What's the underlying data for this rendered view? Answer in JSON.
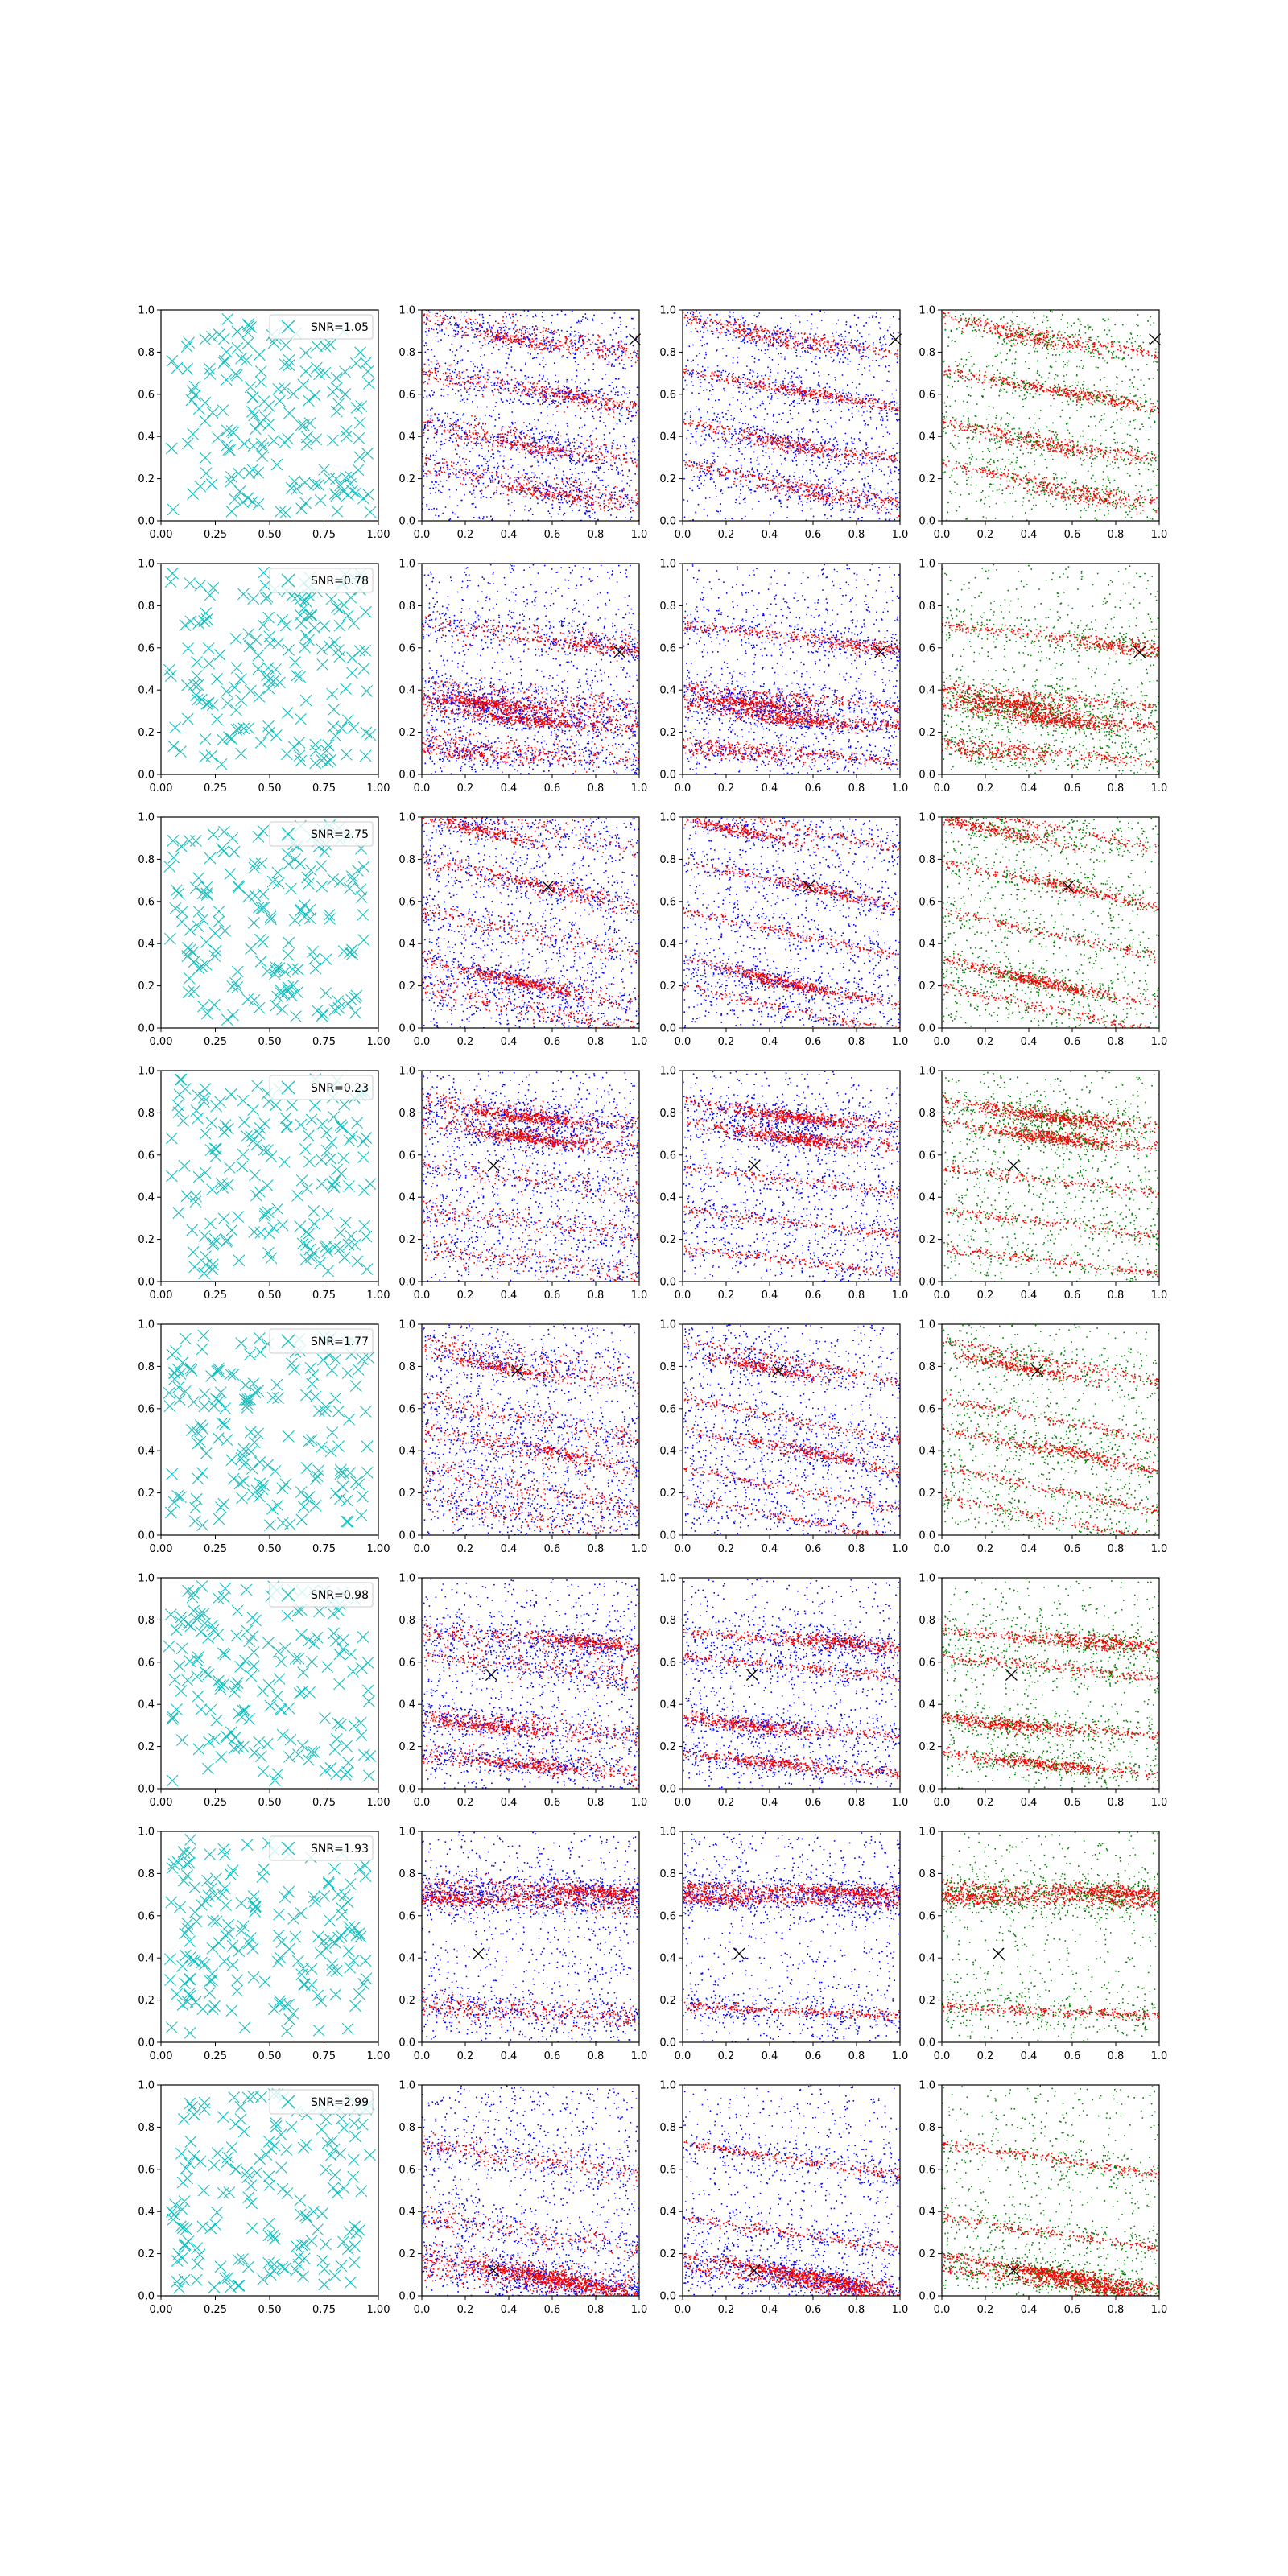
{
  "figure": {
    "rows": 8,
    "columns": 4,
    "colors": {
      "cyan": "#17bfbf",
      "red": "#ff0000",
      "blue": "#0000ff",
      "green": "#008000",
      "marker": "#000000"
    }
  },
  "chart_data": [
    {
      "row": 1,
      "type": "scatter",
      "xlim": [
        0,
        1
      ],
      "ylim": [
        0,
        1
      ],
      "legend": "SNR=1.05",
      "legend_position": "top-right",
      "xticks_col1": [
        "0.00",
        "0.25",
        "0.50",
        "0.75",
        "1.00"
      ],
      "xticks": [
        "0.0",
        "0.2",
        "0.4",
        "0.6",
        "0.8",
        "1.0"
      ],
      "yticks": [
        "0.0",
        "0.2",
        "0.4",
        "0.6",
        "0.8",
        "1.0"
      ],
      "marker": [
        0.98,
        0.86
      ],
      "stripe_slope": -0.18,
      "stripes": [
        0.88,
        0.62,
        0.38,
        0.18
      ],
      "emph": [
        [
          0.42,
          0.86,
          0.3
        ],
        [
          0.65,
          0.6,
          0.3
        ],
        [
          0.5,
          0.35,
          0.3
        ],
        [
          0.62,
          0.12,
          0.3
        ]
      ]
    },
    {
      "row": 2,
      "type": "scatter",
      "xlim": [
        0,
        1
      ],
      "ylim": [
        0,
        1
      ],
      "legend": "SNR=0.78",
      "legend_position": "top-right",
      "xticks_col1": [
        "0.00",
        "0.25",
        "0.50",
        "0.75",
        "1.00"
      ],
      "xticks": [
        "0.0",
        "0.2",
        "0.4",
        "0.6",
        "0.8",
        "1.0"
      ],
      "yticks": [
        "0.0",
        "0.2",
        "0.4",
        "0.6",
        "0.8",
        "1.0"
      ],
      "marker": [
        0.91,
        0.58
      ],
      "stripe_slope": -0.1,
      "stripes": [
        0.66,
        0.37,
        0.28,
        0.11
      ],
      "emph": [
        [
          0.85,
          0.6,
          0.3
        ],
        [
          0.3,
          0.34,
          0.7
        ],
        [
          0.5,
          0.26,
          0.6
        ],
        [
          0.2,
          0.1,
          0.3
        ]
      ]
    },
    {
      "row": 3,
      "type": "scatter",
      "xlim": [
        0,
        1
      ],
      "ylim": [
        0,
        1
      ],
      "legend": "SNR=2.75",
      "legend_position": "top-right",
      "xticks_col1": [
        "0.00",
        "0.25",
        "0.50",
        "0.75",
        "1.00"
      ],
      "xticks": [
        "0.0",
        "0.2",
        "0.4",
        "0.6",
        "0.8",
        "1.0"
      ],
      "yticks": [
        "0.0",
        "0.2",
        "0.4",
        "0.6",
        "0.8",
        "1.0"
      ],
      "marker": [
        0.58,
        0.67
      ],
      "stripe_slope": -0.22,
      "stripes": [
        0.96,
        0.68,
        0.45,
        0.22,
        0.09
      ],
      "emph": [
        [
          0.25,
          0.94,
          0.5
        ],
        [
          0.6,
          0.67,
          0.3
        ],
        [
          0.45,
          0.22,
          0.6
        ]
      ]
    },
    {
      "row": 4,
      "type": "scatter",
      "xlim": [
        0,
        1
      ],
      "ylim": [
        0,
        1
      ],
      "legend": "SNR=0.23",
      "legend_position": "top-right",
      "xticks_col1": [
        "0.00",
        "0.25",
        "0.50",
        "0.75",
        "1.00"
      ],
      "xticks": [
        "0.0",
        "0.2",
        "0.4",
        "0.6",
        "0.8",
        "1.0"
      ],
      "yticks": [
        "0.0",
        "0.2",
        "0.4",
        "0.6",
        "0.8",
        "1.0"
      ],
      "marker": [
        0.33,
        0.55
      ],
      "stripe_slope": -0.12,
      "stripes": [
        0.8,
        0.7,
        0.48,
        0.28,
        0.1
      ],
      "emph": [
        [
          0.5,
          0.78,
          0.7
        ],
        [
          0.5,
          0.68,
          0.7
        ]
      ]
    },
    {
      "row": 5,
      "type": "scatter",
      "xlim": [
        0,
        1
      ],
      "ylim": [
        0,
        1
      ],
      "legend": "SNR=1.77",
      "legend_position": "top-right",
      "xticks_col1": [
        "0.00",
        "0.25",
        "0.50",
        "0.75",
        "1.00"
      ],
      "xticks": [
        "0.0",
        "0.2",
        "0.4",
        "0.6",
        "0.8",
        "1.0"
      ],
      "yticks": [
        "0.0",
        "0.2",
        "0.4",
        "0.6",
        "0.8",
        "1.0"
      ],
      "marker": [
        0.44,
        0.78
      ],
      "stripe_slope": -0.2,
      "stripes": [
        0.83,
        0.55,
        0.4,
        0.22,
        0.08
      ],
      "emph": [
        [
          0.35,
          0.8,
          0.5
        ],
        [
          0.6,
          0.4,
          0.3
        ]
      ]
    },
    {
      "row": 6,
      "type": "scatter",
      "xlim": [
        0,
        1
      ],
      "ylim": [
        0,
        1
      ],
      "legend": "SNR=0.98",
      "legend_position": "top-right",
      "xticks_col1": [
        "0.00",
        "0.25",
        "0.50",
        "0.75",
        "1.00"
      ],
      "xticks": [
        "0.0",
        "0.2",
        "0.4",
        "0.6",
        "0.8",
        "1.0"
      ],
      "yticks": [
        "0.0",
        "0.2",
        "0.4",
        "0.6",
        "0.8",
        "1.0"
      ],
      "marker": [
        0.32,
        0.54
      ],
      "stripe_slope": -0.1,
      "stripes": [
        0.7,
        0.58,
        0.3,
        0.12
      ],
      "emph": [
        [
          0.75,
          0.7,
          0.5
        ],
        [
          0.3,
          0.3,
          0.5
        ],
        [
          0.45,
          0.12,
          0.4
        ]
      ]
    },
    {
      "row": 7,
      "type": "scatter",
      "xlim": [
        0,
        1
      ],
      "ylim": [
        0,
        1
      ],
      "legend": "SNR=1.93",
      "legend_position": "top-right",
      "xticks_col1": [
        "0.00",
        "0.25",
        "0.50",
        "0.75",
        "1.00"
      ],
      "xticks": [
        "0.0",
        "0.2",
        "0.4",
        "0.6",
        "0.8",
        "1.0"
      ],
      "yticks": [
        "0.0",
        "0.2",
        "0.4",
        "0.6",
        "0.8",
        "1.0"
      ],
      "marker": [
        0.26,
        0.42
      ],
      "stripe_slope": -0.05,
      "stripes": [
        0.72,
        0.68,
        0.15
      ],
      "emph": [
        [
          0.8,
          0.72,
          0.5
        ],
        [
          0.1,
          0.68,
          0.4
        ]
      ]
    },
    {
      "row": 8,
      "type": "scatter",
      "xlim": [
        0,
        1
      ],
      "ylim": [
        0,
        1
      ],
      "legend": "SNR=2.99",
      "legend_position": "top-right",
      "xticks_col1": [
        "0.00",
        "0.25",
        "0.50",
        "0.75",
        "1.00"
      ],
      "xticks": [
        "0.0",
        "0.2",
        "0.4",
        "0.6",
        "0.8",
        "1.0"
      ],
      "yticks": [
        "0.0",
        "0.2",
        "0.4",
        "0.6",
        "0.8",
        "1.0"
      ],
      "marker": [
        0.33,
        0.12
      ],
      "stripe_slope": -0.15,
      "stripes": [
        0.65,
        0.3,
        0.12,
        0.06
      ],
      "emph": [
        [
          0.55,
          0.1,
          0.7
        ],
        [
          0.7,
          0.05,
          0.5
        ]
      ]
    }
  ]
}
